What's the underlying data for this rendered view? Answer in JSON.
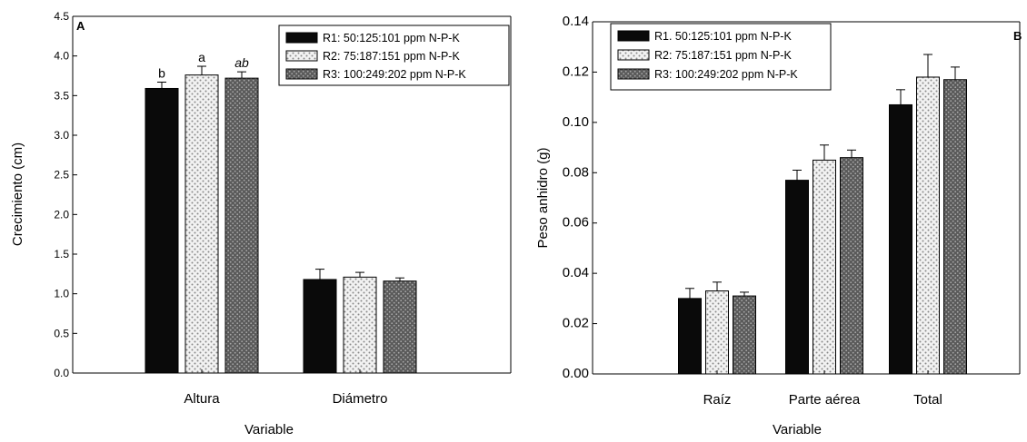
{
  "chart_data": [
    {
      "type": "bar",
      "panel_label": "A",
      "xlabel": "Variable",
      "ylabel": "Crecimiento (cm)",
      "ylim": [
        0,
        4.5
      ],
      "yticks": [
        "0.0",
        "0.5",
        "1.0",
        "1.5",
        "2.0",
        "2.5",
        "3.0",
        "3.5",
        "4.0",
        "4.5"
      ],
      "categories": [
        "Altura",
        "Diámetro"
      ],
      "series": [
        {
          "name": "R1: 50:125:101 ppm N-P-K",
          "values": [
            3.59,
            1.18
          ],
          "errors": [
            0.08,
            0.13
          ],
          "letters": [
            "b",
            ""
          ]
        },
        {
          "name": "R2: 75:187:151 ppm N-P-K",
          "values": [
            3.76,
            1.21
          ],
          "errors": [
            0.11,
            0.06
          ],
          "letters": [
            "a",
            ""
          ]
        },
        {
          "name": "R3: 100:249:202 ppm N-P-K",
          "values": [
            3.72,
            1.16
          ],
          "errors": [
            0.08,
            0.04
          ],
          "letters": [
            "ab",
            ""
          ]
        }
      ],
      "legend_position": "top-right",
      "colors": [
        "#0a0a0a",
        "#e6e6e6",
        "#6e6e6e"
      ]
    },
    {
      "type": "bar",
      "panel_label": "B",
      "xlabel": "Variable",
      "ylabel": "Peso anhidro (g)",
      "ylim": [
        0,
        0.14
      ],
      "yticks": [
        "0.00",
        "0.02",
        "0.04",
        "0.06",
        "0.08",
        "0.10",
        "0.12",
        "0.14"
      ],
      "categories": [
        "Raíz",
        "Parte aérea",
        "Total"
      ],
      "series": [
        {
          "name": "R1. 50:125:101 ppm N-P-K",
          "values": [
            0.03,
            0.077,
            0.107
          ],
          "errors": [
            0.004,
            0.004,
            0.006
          ]
        },
        {
          "name": "R2: 75:187:151 ppm N-P-K",
          "values": [
            0.033,
            0.085,
            0.118
          ],
          "errors": [
            0.0035,
            0.006,
            0.009
          ]
        },
        {
          "name": "R3: 100:249:202 ppm N-P-K",
          "values": [
            0.031,
            0.086,
            0.117
          ],
          "errors": [
            0.0015,
            0.003,
            0.005
          ]
        }
      ],
      "legend_position": "top-right",
      "colors": [
        "#0a0a0a",
        "#e6e6e6",
        "#6e6e6e"
      ]
    }
  ]
}
